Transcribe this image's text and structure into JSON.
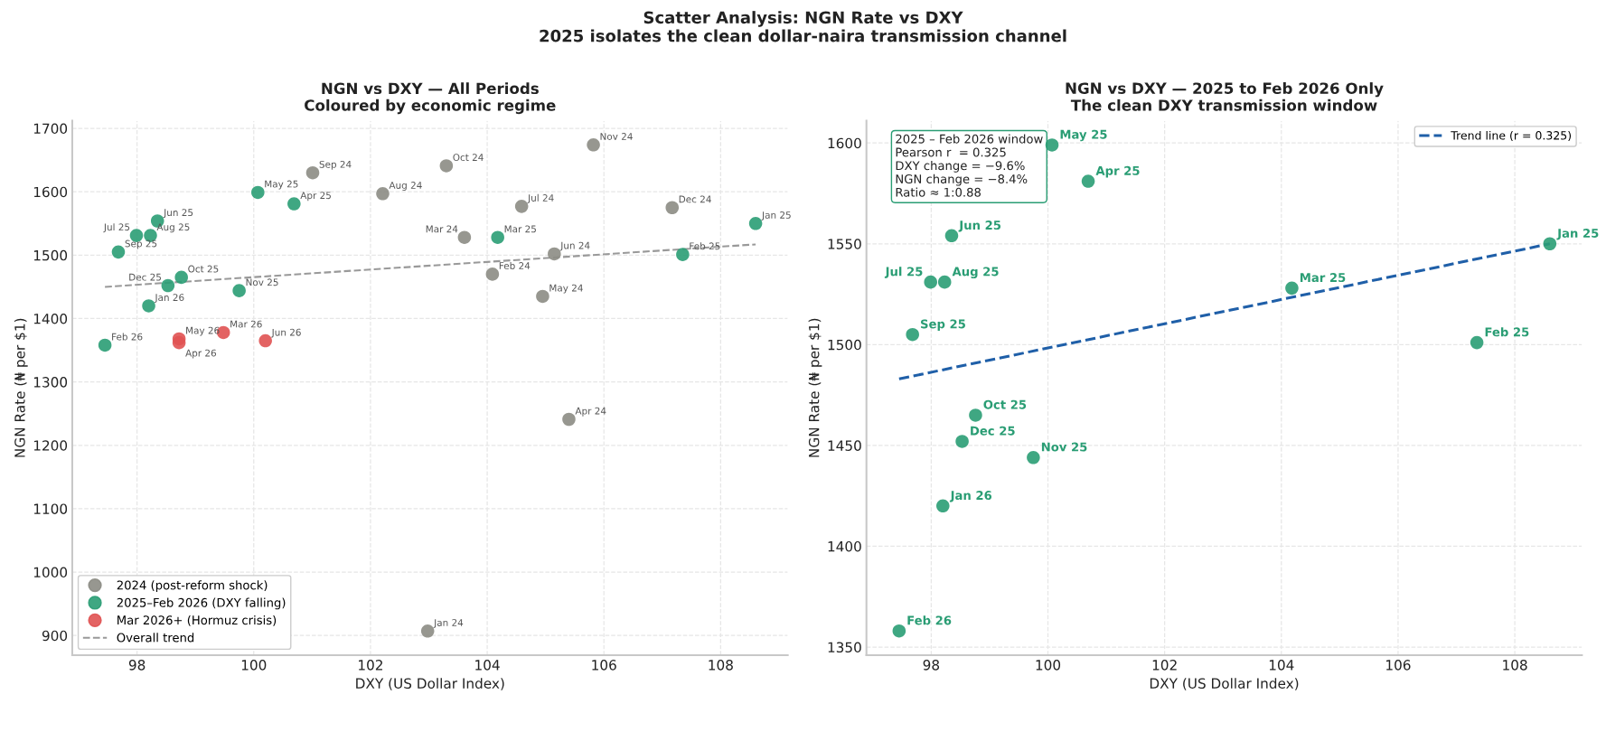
{
  "chart_data": [
    {
      "type": "scatter",
      "title": "NGN vs DXY — All Periods",
      "subtitle": "Coloured by economic regime",
      "xlabel": "DXY (US Dollar Index)",
      "ylabel": "NGN Rate (₦ per $1)",
      "xlim": [
        96.89,
        109.15
      ],
      "ylim": [
        869,
        1712
      ],
      "xticks": [
        98,
        100,
        102,
        104,
        106,
        108
      ],
      "yticks": [
        900,
        1000,
        1100,
        1200,
        1300,
        1400,
        1500,
        1600,
        1700
      ],
      "grid": true,
      "legend": "bottom left",
      "marker": "circle",
      "series": [
        {
          "name": "2024 (post-reform shock)",
          "color": "#8c8c84",
          "x": [
            102.98,
            104.09,
            103.61,
            105.4,
            104.95,
            105.15,
            104.59,
            102.21,
            101.01,
            103.3,
            105.82,
            107.17
          ],
          "values": [
            907,
            1470,
            1528,
            1241,
            1435,
            1502,
            1577,
            1597,
            1630,
            1641,
            1674,
            1575
          ]
        },
        {
          "name": "2025–Feb 2026 (DXY falling)",
          "color": "#2a9d74",
          "x": [
            108.6,
            107.35,
            104.18,
            100.69,
            100.07,
            98.35,
            97.99,
            98.23,
            97.68,
            98.76,
            99.75,
            98.53,
            98.2,
            97.45
          ],
          "values": [
            1550,
            1501,
            1528,
            1581,
            1599,
            1554,
            1531,
            1531,
            1505,
            1465,
            1444,
            1452,
            1420,
            1358
          ]
        },
        {
          "name": "Mar 2026+ (Hormuz crisis)",
          "color": "#e05252",
          "x": [
            99.48,
            98.72,
            98.72,
            100.2
          ],
          "values": [
            1378,
            1362,
            1368,
            1365
          ]
        },
        {
          "name": "Overall trend",
          "type": "line",
          "line_style": "dashed",
          "marker": "none",
          "color": "#999999",
          "x": [
            97.45,
            108.6
          ],
          "values": [
            1450,
            1517
          ]
        }
      ],
      "annotations": [
        "Scatter Analysis: NGN Rate vs DXY\n2025 isolates the clean dollar-naira transmission channel",
        {
          "text": "Jan 24",
          "x": 102.98,
          "y": 907
        },
        {
          "text": "Feb 24",
          "x": 104.09,
          "y": 1470
        },
        {
          "text": "Mar 24",
          "x": 103.61,
          "y": 1528
        },
        {
          "text": "Apr 24",
          "x": 105.4,
          "y": 1241
        },
        {
          "text": "May 24",
          "x": 104.95,
          "y": 1435
        },
        {
          "text": "Jun 24",
          "x": 105.15,
          "y": 1502
        },
        {
          "text": "Jul 24",
          "x": 104.59,
          "y": 1577
        },
        {
          "text": "Aug 24",
          "x": 102.21,
          "y": 1597
        },
        {
          "text": "Sep 24",
          "x": 101.01,
          "y": 1630
        },
        {
          "text": "Oct 24",
          "x": 103.3,
          "y": 1641
        },
        {
          "text": "Nov 24",
          "x": 105.82,
          "y": 1674
        },
        {
          "text": "Dec 24",
          "x": 107.17,
          "y": 1575
        },
        {
          "text": "Jan 25",
          "x": 108.6,
          "y": 1550
        },
        {
          "text": "Feb 25",
          "x": 107.35,
          "y": 1501
        },
        {
          "text": "Mar 25",
          "x": 104.18,
          "y": 1528
        },
        {
          "text": "Apr 25",
          "x": 100.69,
          "y": 1581
        },
        {
          "text": "May 25",
          "x": 100.07,
          "y": 1599
        },
        {
          "text": "Jun 25",
          "x": 98.35,
          "y": 1554
        },
        {
          "text": "Jul 25",
          "x": 97.99,
          "y": 1531
        },
        {
          "text": "Aug 25",
          "x": 98.23,
          "y": 1531
        },
        {
          "text": "Sep 25",
          "x": 97.68,
          "y": 1505
        },
        {
          "text": "Oct 25",
          "x": 98.76,
          "y": 1465
        },
        {
          "text": "Nov 25",
          "x": 99.75,
          "y": 1444
        },
        {
          "text": "Dec 25",
          "x": 98.53,
          "y": 1452
        },
        {
          "text": "Jan 26",
          "x": 98.2,
          "y": 1420
        },
        {
          "text": "Feb 26",
          "x": 97.45,
          "y": 1358
        },
        {
          "text": "Mar 26",
          "x": 99.48,
          "y": 1378
        },
        {
          "text": "Apr 26",
          "x": 98.72,
          "y": 1362
        },
        {
          "text": "May 26",
          "x": 98.72,
          "y": 1368
        },
        {
          "text": "Jun 26",
          "x": 100.2,
          "y": 1365
        }
      ]
    },
    {
      "type": "scatter",
      "title": "NGN vs DXY — 2025 to Feb 2026 Only",
      "subtitle": "The clean DXY transmission window",
      "xlabel": "DXY (US Dollar Index)",
      "ylabel": "NGN Rate (₦ per $1)",
      "xlim": [
        96.89,
        109.15
      ],
      "ylim": [
        1346,
        1611
      ],
      "xticks": [
        98,
        100,
        102,
        104,
        106,
        108
      ],
      "yticks": [
        1350,
        1400,
        1450,
        1500,
        1550,
        1600
      ],
      "grid": true,
      "legend": "top right",
      "marker": "circle",
      "series": [
        {
          "color": "#2a9d74",
          "x": [
            108.6,
            107.35,
            104.18,
            100.69,
            100.07,
            98.35,
            97.99,
            98.23,
            97.68,
            98.76,
            99.75,
            98.53,
            98.2,
            97.45
          ],
          "values": [
            1550,
            1501,
            1528,
            1581,
            1599,
            1554,
            1531,
            1531,
            1505,
            1465,
            1444,
            1452,
            1420,
            1358
          ]
        },
        {
          "name": "Trend line (r = 0.325)",
          "type": "line",
          "line_style": "dashed",
          "marker": "none",
          "color": "#1f5fa8",
          "x": [
            97.45,
            108.6
          ],
          "values": [
            1483,
            1550
          ]
        }
      ],
      "annotations": [
        "2025 – Feb 2026 window\nPearson r  = 0.325\nDXY change = −9.6%\nNGN change = −8.4%\nRatio ≈ 1:0.88",
        {
          "text": "Jan 25",
          "x": 108.6,
          "y": 1550
        },
        {
          "text": "Feb 25",
          "x": 107.35,
          "y": 1501
        },
        {
          "text": "Mar 25",
          "x": 104.18,
          "y": 1528
        },
        {
          "text": "Apr 25",
          "x": 100.69,
          "y": 1581
        },
        {
          "text": "May 25",
          "x": 100.07,
          "y": 1599
        },
        {
          "text": "Jun 25",
          "x": 98.35,
          "y": 1554
        },
        {
          "text": "Jul 25",
          "x": 97.99,
          "y": 1531
        },
        {
          "text": "Aug 25",
          "x": 98.23,
          "y": 1531
        },
        {
          "text": "Sep 25",
          "x": 97.68,
          "y": 1505
        },
        {
          "text": "Oct 25",
          "x": 98.76,
          "y": 1465
        },
        {
          "text": "Nov 25",
          "x": 99.75,
          "y": 1444
        },
        {
          "text": "Dec 25",
          "x": 98.53,
          "y": 1452
        },
        {
          "text": "Jan 26",
          "x": 98.2,
          "y": 1420
        },
        {
          "text": "Feb 26",
          "x": 97.45,
          "y": 1358
        }
      ]
    }
  ]
}
